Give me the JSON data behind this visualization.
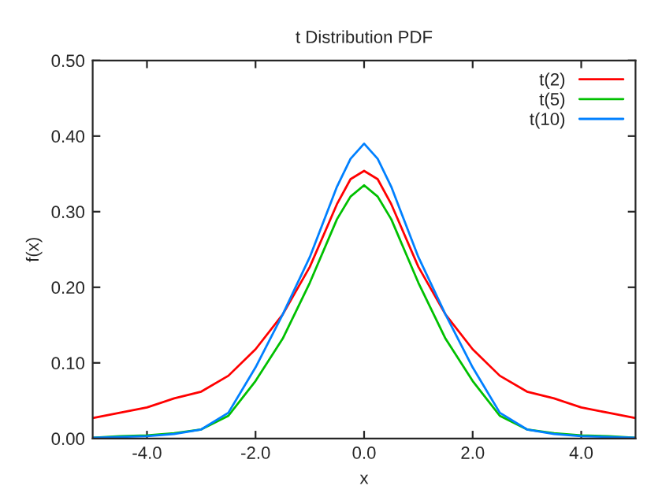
{
  "chart_data": {
    "type": "line",
    "title": "t Distribution PDF",
    "xlabel": "x",
    "ylabel": "f(x)",
    "x": [
      -5,
      -4.5,
      -4,
      -3.5,
      -3,
      -2.5,
      -2,
      -1.5,
      -1,
      -0.5,
      -0.25,
      0,
      0.25,
      0.5,
      1,
      1.5,
      2,
      2.5,
      3,
      3.5,
      4,
      4.5,
      5
    ],
    "series": [
      {
        "name": "t(2)",
        "color": "#ff0000",
        "values": [
          0.027,
          0.034,
          0.041,
          0.053,
          0.062,
          0.083,
          0.118,
          0.164,
          0.227,
          0.31,
          0.343,
          0.354,
          0.343,
          0.31,
          0.227,
          0.164,
          0.118,
          0.083,
          0.062,
          0.053,
          0.041,
          0.034,
          0.027
        ]
      },
      {
        "name": "t(5)",
        "color": "#00c000",
        "values": [
          0.001,
          0.003,
          0.004,
          0.007,
          0.012,
          0.03,
          0.076,
          0.132,
          0.206,
          0.29,
          0.32,
          0.335,
          0.32,
          0.29,
          0.206,
          0.132,
          0.076,
          0.03,
          0.012,
          0.007,
          0.004,
          0.003,
          0.001
        ]
      },
      {
        "name": "t(10)",
        "color": "#0080ff",
        "values": [
          0.001,
          0.002,
          0.003,
          0.006,
          0.012,
          0.034,
          0.094,
          0.164,
          0.24,
          0.333,
          0.37,
          0.39,
          0.37,
          0.333,
          0.24,
          0.164,
          0.094,
          0.034,
          0.012,
          0.006,
          0.003,
          0.002,
          0.001
        ]
      }
    ],
    "xlim": [
      -5,
      5
    ],
    "xticks": [
      {
        "value": -4,
        "label": "-4.0"
      },
      {
        "value": -2,
        "label": "-2.0"
      },
      {
        "value": 0,
        "label": "0.0"
      },
      {
        "value": 2,
        "label": "2.0"
      },
      {
        "value": 4,
        "label": "4.0"
      }
    ],
    "ylim": [
      0,
      0.5
    ],
    "yticks": [
      {
        "value": 0,
        "label": "0.00"
      },
      {
        "value": 0.1,
        "label": "0.10"
      },
      {
        "value": 0.2,
        "label": "0.20"
      },
      {
        "value": 0.3,
        "label": "0.30"
      },
      {
        "value": 0.4,
        "label": "0.40"
      },
      {
        "value": 0.5,
        "label": "0.50"
      }
    ],
    "grid": false,
    "legend": "top right",
    "line_style": "solid"
  }
}
